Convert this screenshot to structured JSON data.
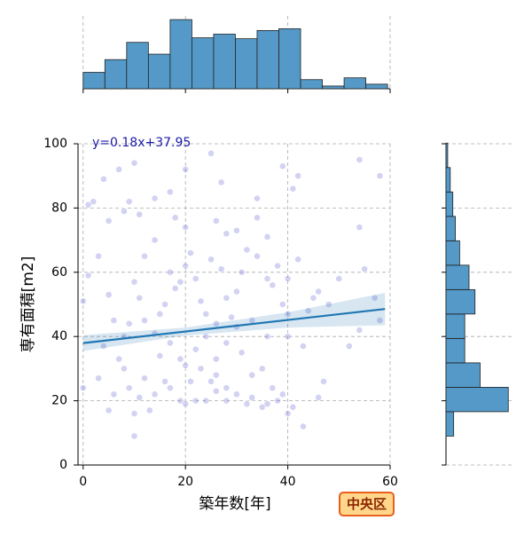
{
  "chart_data": {
    "type": "scatter",
    "x_label": "築年数[年]",
    "y_label": "専有面積[m2]",
    "annotation": "y=0.18x+37.95",
    "badge": "中央区",
    "xlim": [
      -1,
      60
    ],
    "ylim": [
      0,
      100
    ],
    "xticks": [
      0,
      20,
      40,
      60
    ],
    "yticks": [
      0,
      20,
      40,
      60,
      80,
      100
    ],
    "grid": true,
    "color": "#6b6bd6",
    "x": [
      1,
      2,
      1,
      0,
      0,
      4,
      5,
      7,
      10,
      8,
      9,
      11,
      14,
      17,
      20,
      18,
      20,
      25,
      27,
      26,
      28,
      30,
      34,
      34,
      36,
      39,
      41,
      42,
      54,
      58,
      54,
      50,
      55,
      57,
      58,
      54,
      52,
      47,
      46,
      43,
      40,
      38,
      35,
      33,
      30,
      28,
      26,
      25,
      23,
      22,
      20,
      19,
      17,
      16,
      14,
      12,
      11,
      10,
      9,
      8,
      7,
      6,
      5,
      3,
      10,
      13,
      20,
      22,
      24,
      26,
      28,
      30,
      31,
      32,
      34,
      36,
      37,
      38,
      39,
      40,
      40,
      40,
      42,
      44,
      45,
      46,
      48,
      43,
      36,
      33,
      30,
      28,
      26,
      24,
      22,
      20,
      18,
      16,
      15,
      14,
      12,
      11,
      10,
      9,
      8,
      6,
      5,
      4,
      3,
      12,
      14,
      17,
      19,
      21,
      23,
      25,
      27,
      29,
      31,
      33,
      35,
      37,
      39,
      41,
      24,
      26,
      28,
      32,
      36,
      15,
      17,
      19,
      21
    ],
    "y": [
      81,
      82,
      59,
      51,
      24,
      89,
      76,
      92,
      94,
      79,
      82,
      78,
      83,
      85,
      92,
      77,
      74,
      97,
      88,
      76,
      72,
      73,
      83,
      77,
      71,
      93,
      86,
      90,
      95,
      90,
      74,
      58,
      61,
      52,
      45,
      42,
      37,
      26,
      21,
      12,
      16,
      20,
      18,
      21,
      22,
      24,
      28,
      26,
      30,
      20,
      19,
      20,
      24,
      26,
      22,
      27,
      21,
      16,
      24,
      30,
      33,
      22,
      17,
      27,
      9,
      17,
      31,
      36,
      40,
      44,
      52,
      54,
      60,
      67,
      65,
      58,
      56,
      62,
      50,
      47,
      40,
      58,
      64,
      48,
      52,
      54,
      50,
      37,
      40,
      45,
      43,
      38,
      33,
      47,
      58,
      62,
      55,
      50,
      47,
      41,
      45,
      52,
      57,
      44,
      40,
      45,
      53,
      37,
      65,
      65,
      70,
      60,
      57,
      66,
      51,
      64,
      61,
      46,
      35,
      28,
      30,
      24,
      22,
      18,
      20,
      23,
      20,
      19,
      19,
      34,
      38,
      33,
      26
    ],
    "regression": {
      "color": "#1f77b4",
      "x": [
        0,
        20,
        40,
        59
      ],
      "y": [
        37.95,
        41.55,
        45.15,
        48.57
      ],
      "lower": [
        35.5,
        40.3,
        42.8,
        43.5
      ],
      "upper": [
        40.4,
        42.8,
        47.5,
        53.6
      ]
    },
    "x_hist": {
      "color": "#5499c7",
      "bins": [
        0,
        4.25,
        8.5,
        12.75,
        17,
        21.25,
        25.5,
        29.75,
        34,
        38.25,
        42.5,
        46.75,
        51,
        55.25,
        59.5
      ],
      "counts": [
        18,
        32,
        51,
        38,
        76,
        56,
        60,
        55,
        64,
        66,
        10,
        3,
        12,
        5
      ],
      "lim": [
        0,
        80
      ]
    },
    "y_hist": {
      "color": "#5499c7",
      "bins": [
        9,
        16.6,
        24.2,
        31.8,
        39.4,
        47,
        54.6,
        62.2,
        69.8,
        77.4,
        85,
        92.6,
        100.2
      ],
      "counts": [
        9,
        73,
        40,
        22,
        22,
        34,
        27,
        16,
        11,
        8,
        5,
        2
      ],
      "lim": [
        0,
        80
      ]
    }
  }
}
